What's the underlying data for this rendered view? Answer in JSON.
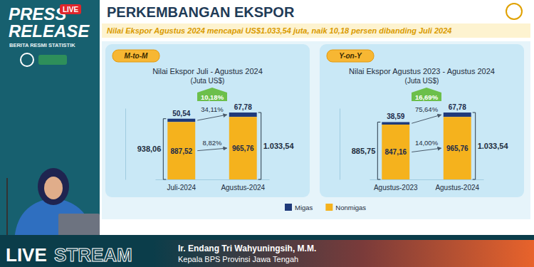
{
  "header": {
    "badge": "LIVE",
    "title_lines": [
      "PRESS",
      "RELEASE"
    ],
    "tagline": "BERITA RESMI STATISTIK",
    "heading": "PERKEMBANGAN EKSPOR",
    "headline": "Nilai Ekspor Agustus 2024 mencapai US$1.033,54 juta, naik 10,18 persen dibanding Juli 2024"
  },
  "footer": {
    "stream": [
      "LIVE",
      "STREAM"
    ],
    "presenter": "Ir. Endang Tri Wahyuningsih, M.M.",
    "role": "Kepala BPS Provinsi Jawa Tengah"
  },
  "chart_data": [
    {
      "type": "bar",
      "stacked": true,
      "data_labels": true,
      "tick_labels": "x",
      "legend": "bottom",
      "period_label": "M-to-M",
      "title": "Nilai Ekspor Juli - Agustus 2024",
      "subtitle": "(Juta US$)",
      "categories": [
        "Juli-2024",
        "Agustus-2024"
      ],
      "series": [
        {
          "name": "Migas",
          "color": "#1f3a7a",
          "values": [
            50.54,
            67.78
          ],
          "value_labels": [
            "50,54",
            "67,78"
          ],
          "change_label": "34,11%"
        },
        {
          "name": "Nonmigas",
          "color": "#f5b21d",
          "values": [
            887.52,
            965.76
          ],
          "value_labels": [
            "887,52",
            "965,76"
          ],
          "change_label": "8,82%"
        }
      ],
      "totals": [
        938.06,
        1033.54
      ],
      "total_labels": [
        "938,06",
        "1.033,54"
      ],
      "total_change_label": "10,18%",
      "ylim": [
        0,
        1100
      ],
      "yticks": []
    },
    {
      "type": "bar",
      "stacked": true,
      "data_labels": true,
      "tick_labels": "x",
      "period_label": "Y-on-Y",
      "title": "Nilai Ekspor Agustus 2023 - Agustus 2024",
      "subtitle": "(Juta US$)",
      "categories": [
        "Agustus-2023",
        "Agustus-2024"
      ],
      "series": [
        {
          "name": "Migas",
          "color": "#1f3a7a",
          "values": [
            38.59,
            67.78
          ],
          "value_labels": [
            "38,59",
            "67,78"
          ],
          "change_label": "75,64%"
        },
        {
          "name": "Nonmigas",
          "color": "#f5b21d",
          "values": [
            847.16,
            965.76
          ],
          "value_labels": [
            "847,16",
            "965,76"
          ],
          "change_label": "14,00%"
        }
      ],
      "totals": [
        885.75,
        1033.54
      ],
      "total_labels": [
        "885,75",
        "1.033,54"
      ],
      "total_change_label": "16,69%",
      "ylim": [
        0,
        1100
      ],
      "yticks": []
    }
  ]
}
